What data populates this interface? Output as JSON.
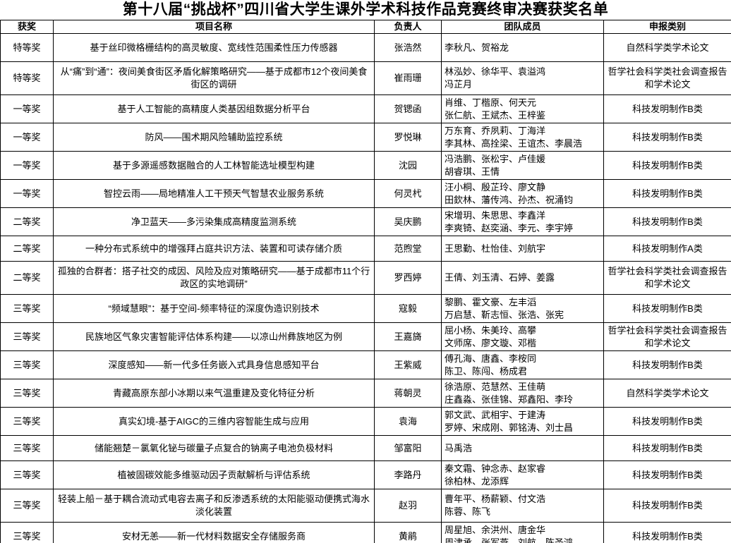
{
  "title": "第十八届“挑战杯”四川省大学生课外学术科技作品竞赛终审决赛获奖名单",
  "table": {
    "headers": {
      "award": "获奖",
      "project": "项目名称",
      "leader": "负责人",
      "team": "团队成员",
      "category": "申报类别"
    },
    "rows": [
      {
        "award": "特等奖",
        "project": "基于丝印微格栅结构的高灵敏度、宽线性范围柔性压力传感器",
        "leader": "张浩然",
        "team": "李秋凡、贺裕龙",
        "category": "自然科学类学术论文"
      },
      {
        "award": "特等奖",
        "project": "从“痛”到“通”：夜间美食街区矛盾化解策略研究——基于成都市12个夜间美食街区的调研",
        "leader": "崔雨珊",
        "team": "林泓妙、徐华平、袁溢鸿\n冯芷月",
        "category": "哲学社会科学类社会调查报告和学术论文"
      },
      {
        "award": "一等奖",
        "project": "基于人工智能的高精度人类基因组数据分析平台",
        "leader": "贺锶函",
        "team": "肖维、丁楷原、何天元\n张仁航、王斌杰、王梓鉴",
        "category": "科技发明制作B类"
      },
      {
        "award": "一等奖",
        "project": "防风——围术期风险辅助监控系统",
        "leader": "罗悦琳",
        "team": "万东育、乔夙莉、丁海洋\n李其林、高拴梁、王谊杰、李晨浩",
        "category": "科技发明制作B类"
      },
      {
        "award": "一等奖",
        "project": "基于多源遥感数据融合的人工林智能选址模型构建",
        "leader": "沈园",
        "team": "冯浩鹏、张松宇、卢佳媛\n胡睿琪、王情",
        "category": "科技发明制作B类"
      },
      {
        "award": "一等奖",
        "project": "智控云雨——局地精准人工干预天气智慧农业服务系统",
        "leader": "何灵杙",
        "team": "汪小桐、殷芷玲、廖文静\n田欽林、藩传鸿、孙杰、祝涌钧",
        "category": "科技发明制作B类"
      },
      {
        "award": "二等奖",
        "project": "净卫蓝天——多污染集成高精度监测系统",
        "leader": "吴庆鹏",
        "team": "宋增玥、朱思思、李鑫洋\n李爽锜、赵奕涵、李元、李宇婷",
        "category": "科技发明制作B类"
      },
      {
        "award": "二等奖",
        "project": "一种分布式系统中的增强拜占庭共识方法、装置和可读存储介质",
        "leader": "范煦堂",
        "team": "王思勤、杜怡佳、刘航宇",
        "category": "科技发明制作A类"
      },
      {
        "award": "二等奖",
        "project": "孤独的合群者：搭子社交的成因、风险及应对策略研究——基于成都市11个行政区的实地调研”",
        "leader": "罗西婷",
        "team": "王倩、刘玉清、石婷、姜露",
        "category": "哲学社会科学类社会调查报告和学术论文"
      },
      {
        "award": "三等奖",
        "project": "“频域慧眼”：基于空间-频率特征的深度伪造识别技术",
        "leader": "寇毅",
        "team": "黎鹏、霍文豪、左丰滔\n万启慧、靳志恒、张浩、张宪",
        "category": "科技发明制作B类"
      },
      {
        "award": "三等奖",
        "project": "民族地区气象灾害智能评估体系构建——以凉山州彝族地区为例",
        "leader": "王嘉旖",
        "team": "屈小杨、朱美玲、高攀\n文师席、廖文璇、邓楷",
        "category": "哲学社会科学类社会调查报告和学术论文"
      },
      {
        "award": "三等奖",
        "project": "深度感知——新一代多任务嵌入式具身信息感知平台",
        "leader": "王紫威",
        "team": "傅孔海、唐鑫、李桉同\n陈卫、陈闯、杨成君",
        "category": "科技发明制作B类"
      },
      {
        "award": "三等奖",
        "project": "青藏高原东部小冰期以来气温重建及变化特征分析",
        "leader": "蒋朝灵",
        "team": "徐浩原、范慧然、王佳萌\n庄鑫淼、张佳锦、郑鑫阳、李玲",
        "category": "自然科学类学术论文"
      },
      {
        "award": "三等奖",
        "project": "真实幻境-基于AIGC的三维内容智能生成与应用",
        "leader": "袁海",
        "team": "郭文武、武相宇、于建涛\n罗婷、宋成刚、郭铭涛、刘士昌",
        "category": "科技发明制作B类"
      },
      {
        "award": "三等奖",
        "project": "储能翘楚－氯氧化铋与碳量子点复合的钠离子电池负极材料",
        "leader": "邹富阳",
        "team": "马禹浩",
        "category": "科技发明制作B类"
      },
      {
        "award": "三等奖",
        "project": "植被固碳效能多维驱动因子贡献解析与评估系统",
        "leader": "李路丹",
        "team": "秦文霜、钟念赤、赵家睿\n徐柏林、龙添辉",
        "category": "科技发明制作B类"
      },
      {
        "award": "三等奖",
        "project": "轻装上船－基于耦合流动式电容去离子和反渗透系统的太阳能驱动便携式海水淡化装置",
        "leader": "赵羽",
        "team": "曹年平、杨薪颖、付文浩\n陈蓉、陈飞",
        "category": "科技发明制作B类"
      },
      {
        "award": "三等奖",
        "project": "安材无恙——新一代材料数据安全存储服务商",
        "leader": "黄鹃",
        "team": "周星旭、余洪州、唐金华\n周津承、张军燕、刘航、陈圣鸿",
        "category": "科技发明制作B类"
      }
    ]
  }
}
